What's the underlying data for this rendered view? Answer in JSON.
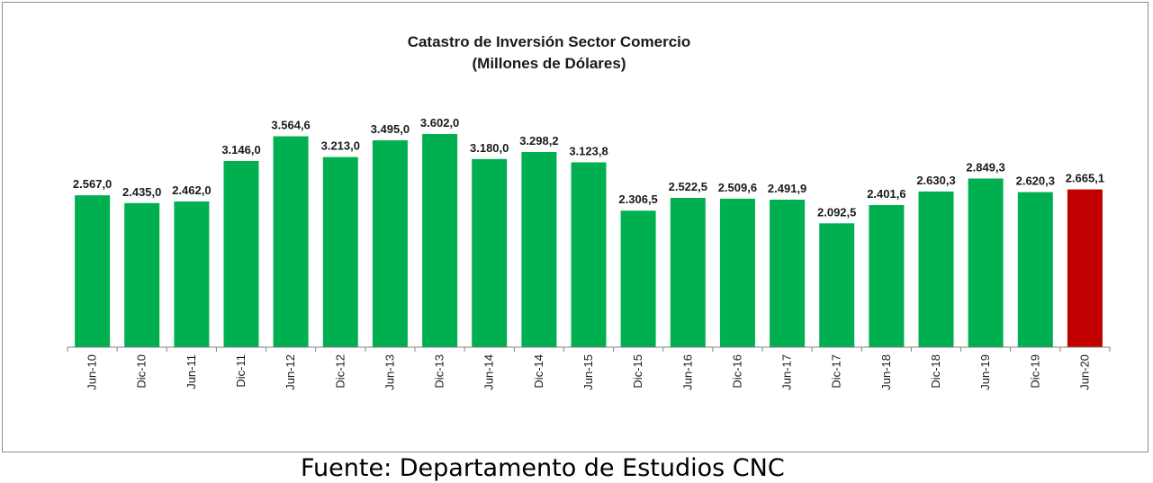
{
  "source_note": "Fuente: Departamento de Estudios CNC",
  "colors": {
    "bar": "#00b050",
    "highlight": "#c00000",
    "axis": "#808080"
  },
  "chart_data": {
    "type": "bar",
    "title": [
      "Catastro de Inversión Sector Comercio",
      "(Millones de Dólares)"
    ],
    "categories": [
      "Jun-10",
      "Dic-10",
      "Jun-11",
      "Dic-11",
      "Jun-12",
      "Dic-12",
      "Jun-13",
      "Dic-13",
      "Jun-14",
      "Dic-14",
      "Jun-15",
      "Dic-15",
      "Jun-16",
      "Dic-16",
      "Jun-17",
      "Dic-17",
      "Jun-18",
      "Dic-18",
      "Jun-19",
      "Dic-19",
      "Jun-20"
    ],
    "values": [
      2567.0,
      2435.0,
      2462.0,
      3146.0,
      3564.6,
      3213.0,
      3495.0,
      3602.0,
      3180.0,
      3298.2,
      3123.8,
      2306.5,
      2522.5,
      2509.6,
      2491.9,
      2092.5,
      2401.6,
      2630.3,
      2849.3,
      2620.3,
      2665.1
    ],
    "labels": [
      "2.567,0",
      "2.435,0",
      "2.462,0",
      "3.146,0",
      "3.564,6",
      "3.213,0",
      "3.495,0",
      "3.602,0",
      "3.180,0",
      "3.298,2",
      "3.123,8",
      "2.306,5",
      "2.522,5",
      "2.509,6",
      "2.491,9",
      "2.092,5",
      "2.401,6",
      "2.630,3",
      "2.849,3",
      "2.620,3",
      "2.665,1"
    ],
    "highlight_last": true,
    "xlabel": "",
    "ylabel": "",
    "ylim": [
      0,
      4000
    ],
    "grid": false,
    "legend": "none"
  }
}
